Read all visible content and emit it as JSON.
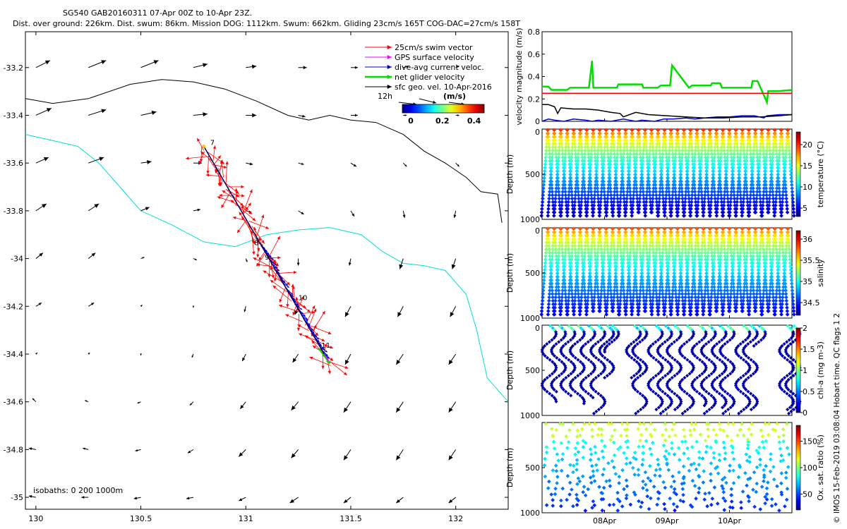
{
  "header": {
    "line1": "SG540 GAB20160311 07-Apr 00Z to 10-Apr 23Z.",
    "line2": "Dist. over ground: 226km. Dist. swum: 86km. Mission DOG: 1112km. Swum: 662km. Gliding 23cm/s 165T COG-DAC=27cm/s 158T"
  },
  "watermark": "© IMOS 15-Feb-2019 03:08:04 Hobart time. QC flags 1  2",
  "colors": {
    "swim": "#ff0000",
    "gps": "#ff00ff",
    "dac": "#0000cc",
    "net": "#00dd00",
    "geo": "#000000",
    "isobath_shallow": "#00dddd",
    "isobath_deep": "#000000"
  },
  "chart_data": [
    {
      "id": "map",
      "type": "scatter",
      "title": "",
      "xlim": [
        129.95,
        132.25
      ],
      "ylim": [
        -35.05,
        -33.05
      ],
      "xticks": [
        130,
        130.5,
        131,
        131.5,
        132
      ],
      "xtick_labels": [
        "130",
        "130.5",
        "131",
        "131.5",
        "132"
      ],
      "yticks": [
        -33.2,
        -33.4,
        -33.6,
        -33.8,
        -34,
        -34.2,
        -34.4,
        -34.6,
        -34.8,
        -35
      ],
      "ytick_labels": [
        "-33.2",
        "-33.4",
        "-33.6",
        "-33.8",
        "-34",
        "-34.2",
        "-34.4",
        "-34.6",
        "-34.8",
        "-35"
      ],
      "legend": {
        "placement": "top-right",
        "entries": [
          "25cm/s swim vector",
          "GPS surface velocity",
          "dive-avg current veloc.",
          "net glider velocity",
          "sfc geo. vel. 10-Apr-2016"
        ],
        "time_label": "12h",
        "colorbar_title": "(m/s)",
        "colorbar_ticks": [
          "0",
          "0.2",
          "0.4"
        ]
      },
      "isobaths_label": "isobaths: 0   200   1000m",
      "track": {
        "start": [
          130.8,
          -33.53
        ],
        "end": [
          131.4,
          -34.44
        ],
        "day_labels": [
          {
            "text": "7",
            "lon": 130.81,
            "lat": -33.53
          },
          {
            "text": "8",
            "lon": 131.02,
            "lat": -33.95
          },
          {
            "text": "9",
            "lon": 131.07,
            "lat": -34.01
          },
          {
            "text": "10",
            "lon": 131.23,
            "lat": -34.18
          },
          {
            "text": "11",
            "lon": 131.34,
            "lat": -34.38
          }
        ]
      },
      "coastline_0m": [
        [
          129.95,
          -33.33
        ],
        [
          130.08,
          -33.35
        ],
        [
          130.25,
          -33.33
        ],
        [
          130.45,
          -33.27
        ],
        [
          130.6,
          -33.25
        ],
        [
          130.75,
          -33.26
        ],
        [
          130.9,
          -33.29
        ],
        [
          131.05,
          -33.34
        ],
        [
          131.2,
          -33.4
        ],
        [
          131.3,
          -33.42
        ],
        [
          131.4,
          -33.4
        ],
        [
          131.5,
          -33.42
        ],
        [
          131.62,
          -33.43
        ],
        [
          131.75,
          -33.48
        ],
        [
          131.85,
          -33.55
        ],
        [
          131.95,
          -33.6
        ],
        [
          132.05,
          -33.66
        ],
        [
          132.12,
          -33.72
        ],
        [
          132.2,
          -33.73
        ],
        [
          132.22,
          -33.85
        ]
      ],
      "isobath_200m": [
        [
          129.95,
          -33.48
        ],
        [
          130.05,
          -33.5
        ],
        [
          130.2,
          -33.53
        ],
        [
          130.3,
          -33.6
        ],
        [
          130.4,
          -33.7
        ],
        [
          130.5,
          -33.8
        ],
        [
          130.65,
          -33.86
        ],
        [
          130.8,
          -33.93
        ],
        [
          130.95,
          -33.95
        ],
        [
          131.1,
          -33.9
        ],
        [
          131.25,
          -33.88
        ],
        [
          131.4,
          -33.87
        ],
        [
          131.55,
          -33.9
        ],
        [
          131.65,
          -33.97
        ],
        [
          131.75,
          -34.02
        ],
        [
          131.85,
          -34.03
        ],
        [
          131.95,
          -34.05
        ],
        [
          132.05,
          -34.15
        ],
        [
          132.1,
          -34.3
        ],
        [
          132.15,
          -34.5
        ],
        [
          132.25,
          -34.6
        ]
      ],
      "geo_velocity": {
        "lons": [
          130,
          130.25,
          130.5,
          130.75,
          131,
          131.25,
          131.5,
          131.75,
          132,
          132.25
        ],
        "lats": [
          -33.2,
          -33.4,
          -33.6,
          -33.8,
          -34,
          -34.2,
          -34.4,
          -34.6,
          -34.8,
          -35
        ],
        "u": [
          [
            0.2,
            0.25,
            0.25,
            0.2,
            0.15,
            0.12,
            0.1,
            0.08,
            0.05,
            0.05
          ],
          [
            0.22,
            0.25,
            0.22,
            0.2,
            0.15,
            0.1,
            0.1,
            0.05,
            0.05,
            0.05
          ],
          [
            0.18,
            0.22,
            0.15,
            0.12,
            0.1,
            0.08,
            0.08,
            0.05,
            0.05,
            0.05
          ],
          [
            0.15,
            0.15,
            0.12,
            0.1,
            0.08,
            0.08,
            0.05,
            0.02,
            -0.02,
            0
          ],
          [
            0.1,
            0.1,
            0.05,
            0.05,
            0.02,
            0.0,
            -0.02,
            -0.05,
            -0.05,
            -0.05
          ],
          [
            0.08,
            0.08,
            0.02,
            0.0,
            -0.02,
            -0.05,
            -0.08,
            -0.08,
            -0.08,
            -0.08
          ],
          [
            0.02,
            0.02,
            0.0,
            -0.02,
            -0.05,
            -0.08,
            -0.08,
            -0.1,
            -0.1,
            -0.1
          ],
          [
            -0.05,
            -0.05,
            -0.05,
            -0.05,
            -0.08,
            -0.1,
            -0.1,
            -0.1,
            -0.1,
            -0.1
          ],
          [
            -0.1,
            -0.08,
            -0.08,
            -0.08,
            -0.1,
            -0.1,
            -0.1,
            -0.1,
            -0.1,
            -0.1
          ],
          [
            -0.1,
            -0.1,
            -0.1,
            -0.1,
            -0.1,
            -0.12,
            -0.1,
            -0.1,
            -0.1,
            -0.1
          ]
        ],
        "v": [
          [
            0.1,
            0.1,
            0.1,
            0.05,
            0.02,
            0.0,
            0.0,
            0.02,
            0.02,
            0.02
          ],
          [
            0.1,
            0.08,
            0.05,
            0.02,
            0.0,
            -0.02,
            0.0,
            0.0,
            0.0,
            -0.02
          ],
          [
            0.08,
            0.08,
            0.02,
            0.0,
            -0.02,
            -0.02,
            -0.05,
            -0.05,
            -0.05,
            -0.05
          ],
          [
            0.1,
            0.1,
            0.05,
            0.02,
            -0.02,
            -0.05,
            -0.08,
            -0.1,
            -0.1,
            -0.1
          ],
          [
            0.08,
            0.08,
            0.02,
            -0.02,
            -0.05,
            -0.1,
            -0.1,
            -0.15,
            -0.15,
            -0.12
          ],
          [
            0.05,
            0.05,
            0.02,
            -0.02,
            -0.08,
            -0.12,
            -0.15,
            -0.15,
            -0.15,
            -0.12
          ],
          [
            0.02,
            0.02,
            -0.02,
            -0.05,
            -0.1,
            -0.12,
            -0.15,
            -0.15,
            -0.15,
            -0.15
          ],
          [
            0.05,
            0.02,
            -0.02,
            -0.05,
            -0.1,
            -0.12,
            -0.15,
            -0.15,
            -0.15,
            -0.15
          ],
          [
            0.02,
            0.02,
            -0.02,
            -0.05,
            -0.1,
            -0.12,
            -0.15,
            -0.15,
            -0.15,
            -0.12
          ],
          [
            0.02,
            0.0,
            -0.02,
            -0.02,
            -0.05,
            -0.08,
            -0.08,
            -0.08,
            -0.08,
            -0.05
          ]
        ]
      }
    },
    {
      "id": "velocity",
      "type": "line",
      "ylabel": "velocity magnitude (m/s)",
      "ylim": [
        0,
        0.8
      ],
      "yticks": [
        0,
        0.2,
        0.4,
        0.6,
        0.8
      ],
      "ytick_labels": [
        "0",
        "0.2",
        "0.4",
        "0.6",
        "0.8"
      ],
      "xlim": [
        7.0,
        11.0
      ],
      "series": [
        {
          "key": "net",
          "x": [
            7.0,
            7.1,
            7.15,
            7.4,
            7.45,
            7.75,
            7.8,
            7.82,
            8.2,
            8.22,
            8.6,
            8.62,
            8.85,
            8.9,
            9.05,
            9.08,
            9.35,
            9.4,
            9.7,
            9.72,
            9.85,
            9.88,
            10.35,
            10.37,
            10.45,
            10.6,
            10.62,
            10.8,
            11.0
          ],
          "y": [
            0.31,
            0.31,
            0.28,
            0.28,
            0.3,
            0.3,
            0.54,
            0.3,
            0.3,
            0.33,
            0.33,
            0.3,
            0.3,
            0.32,
            0.32,
            0.5,
            0.3,
            0.32,
            0.32,
            0.34,
            0.34,
            0.3,
            0.3,
            0.36,
            0.36,
            0.17,
            0.27,
            0.27,
            0.28
          ]
        },
        {
          "key": "swim",
          "x": [
            7.0,
            11.0
          ],
          "y": [
            0.25,
            0.25
          ]
        },
        {
          "key": "dac",
          "x": [
            7.0,
            7.1,
            7.2,
            7.35,
            7.5,
            7.7,
            7.8,
            7.9,
            8.1,
            8.3,
            8.5,
            8.6,
            8.8,
            8.95,
            9.1,
            9.3,
            9.45,
            9.6,
            9.8,
            10.0,
            10.2,
            10.4,
            10.55,
            10.6,
            10.8,
            11.0
          ],
          "y": [
            0.0,
            0.02,
            0.01,
            0.0,
            0.02,
            0.01,
            0.0,
            0.01,
            0.0,
            0.02,
            0.0,
            0.01,
            0.0,
            0.02,
            0.02,
            0.03,
            0.02,
            0.03,
            0.04,
            0.04,
            0.05,
            0.05,
            0.03,
            0.05,
            0.06,
            0.06
          ]
        },
        {
          "key": "geo",
          "x": [
            7.0,
            7.1,
            7.2,
            7.25,
            7.3,
            7.5,
            7.7,
            7.9,
            8.1,
            8.25,
            8.3,
            8.5,
            8.7,
            9.0,
            9.3,
            9.6,
            9.9,
            10.2,
            10.5,
            10.8,
            11.0
          ],
          "y": [
            0.15,
            0.15,
            0.13,
            0.07,
            0.12,
            0.11,
            0.11,
            0.1,
            0.08,
            0.07,
            0.04,
            0.08,
            0.06,
            0.05,
            0.04,
            0.03,
            0.03,
            0.04,
            0.04,
            0.05,
            0.06
          ]
        }
      ]
    },
    {
      "id": "temperature",
      "type": "scatter",
      "ylabel": "Depth (m)",
      "colorbar_label": "temperature (°C)",
      "colorbar_ticks": [
        "5",
        "10",
        "15",
        "20"
      ],
      "clim": [
        3,
        23
      ],
      "ylim": [
        0,
        1000
      ],
      "yticks": [
        "0",
        "500",
        "1000"
      ],
      "surface_value": 21,
      "bottom_value": 4
    },
    {
      "id": "salinity",
      "type": "scatter",
      "ylabel": "Depth (m)",
      "colorbar_label": "salinity",
      "colorbar_ticks": [
        "34.5",
        "35",
        "35.5",
        "36"
      ],
      "clim": [
        34.2,
        36.2
      ],
      "ylim": [
        0,
        1000
      ],
      "yticks": [
        "0",
        "500",
        "1000"
      ],
      "surface_value": 35.9,
      "bottom_value": 34.4
    },
    {
      "id": "chla",
      "type": "scatter",
      "ylabel": "Depth (m)",
      "colorbar_label": "chl-a (mg m-3)",
      "colorbar_ticks": [
        "0",
        "0.5",
        "1",
        "1.5",
        "2"
      ],
      "clim": [
        0,
        2
      ],
      "ylim": [
        0,
        1000
      ],
      "yticks": [
        "0",
        "500",
        "1000"
      ]
    },
    {
      "id": "oxygen",
      "type": "scatter",
      "ylabel": "Depth (m)",
      "colorbar_label": "Ox. sat. ratio (%)",
      "colorbar_ticks": [
        "50",
        "100",
        "150"
      ],
      "clim": [
        20,
        180
      ],
      "ylim": [
        0,
        1000
      ],
      "yticks": [
        "500",
        "1000"
      ]
    },
    {
      "id": "time_axis",
      "type": "line",
      "xlim": [
        7.0,
        11.0
      ],
      "xticks": [
        8,
        9,
        10
      ],
      "xtick_labels": [
        "08Apr",
        "09Apr",
        "10Apr"
      ]
    }
  ]
}
